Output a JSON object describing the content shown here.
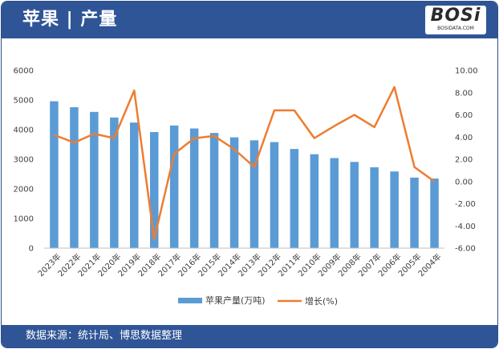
{
  "header": {
    "title": "苹果 | 产量"
  },
  "logo": {
    "word": "BOSi",
    "sub": "BOSIDATA.COM"
  },
  "footer": {
    "source": "数据来源：统计局、博思数据整理"
  },
  "colors": {
    "bar": "#5b9bd5",
    "line": "#ed7d31",
    "banner": "#2f5597"
  },
  "chart_data": {
    "type": "bar",
    "categories": [
      "2023年",
      "2022年",
      "2021年",
      "2020年",
      "2019年",
      "2018年",
      "2017年",
      "2016年",
      "2015年",
      "2014年",
      "2013年",
      "2012年",
      "2011年",
      "2010年",
      "2009年",
      "2008年",
      "2007年",
      "2006年",
      "2005年",
      "2004年"
    ],
    "series": [
      {
        "name": "苹果产量(万吨)",
        "type": "bar",
        "axis": "left",
        "values": [
          4960,
          4760,
          4600,
          4410,
          4240,
          3920,
          4140,
          4040,
          3890,
          3740,
          3640,
          3580,
          3350,
          3170,
          3040,
          2910,
          2730,
          2590,
          2380,
          2350
        ]
      },
      {
        "name": "增长(%)",
        "type": "line",
        "axis": "right",
        "values": [
          4.2,
          3.5,
          4.3,
          3.9,
          8.2,
          -5.2,
          2.5,
          3.9,
          4.1,
          2.9,
          1.3,
          6.4,
          6.4,
          3.9,
          5.0,
          6.0,
          4.9,
          8.5,
          1.3,
          0.0
        ]
      }
    ],
    "y_left": {
      "min": 0,
      "max": 6000,
      "ticks": [
        "0",
        "1000",
        "2000",
        "3000",
        "4000",
        "5000",
        "6000"
      ]
    },
    "y_right": {
      "min": -6,
      "max": 10,
      "ticks": [
        "-6.00",
        "-4.00",
        "-2.00",
        "0.00",
        "2.00",
        "4.00",
        "6.00",
        "8.00",
        "10.00"
      ]
    },
    "legend_position": "bottom",
    "grid": false
  }
}
